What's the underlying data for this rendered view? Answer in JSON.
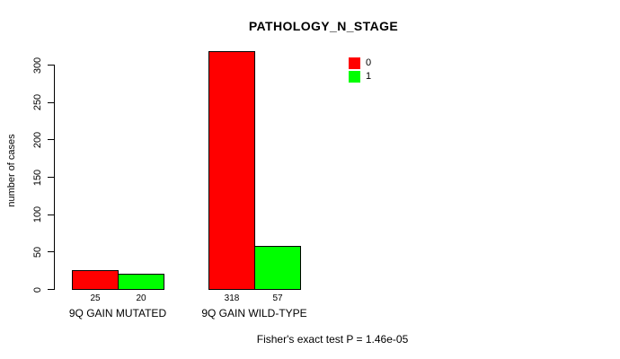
{
  "chart_data": {
    "type": "bar",
    "title": "PATHOLOGY_N_STAGE",
    "xlabel": "",
    "ylabel": "number of cases",
    "categories": [
      "9Q GAIN MUTATED",
      "9Q GAIN WILD-TYPE"
    ],
    "series": [
      {
        "name": "0",
        "color": "#ff0000",
        "values": [
          25,
          318
        ]
      },
      {
        "name": "1",
        "color": "#00ff00",
        "values": [
          20,
          57
        ]
      }
    ],
    "value_labels": [
      [
        "25",
        "20"
      ],
      [
        "318",
        "57"
      ]
    ],
    "ylim": [
      0,
      300
    ],
    "yticks": [
      0,
      50,
      100,
      150,
      200,
      250,
      300
    ],
    "grid": false,
    "legend_position": "top-right",
    "annotation": "Fisher's exact test P = 1.46e-05"
  }
}
